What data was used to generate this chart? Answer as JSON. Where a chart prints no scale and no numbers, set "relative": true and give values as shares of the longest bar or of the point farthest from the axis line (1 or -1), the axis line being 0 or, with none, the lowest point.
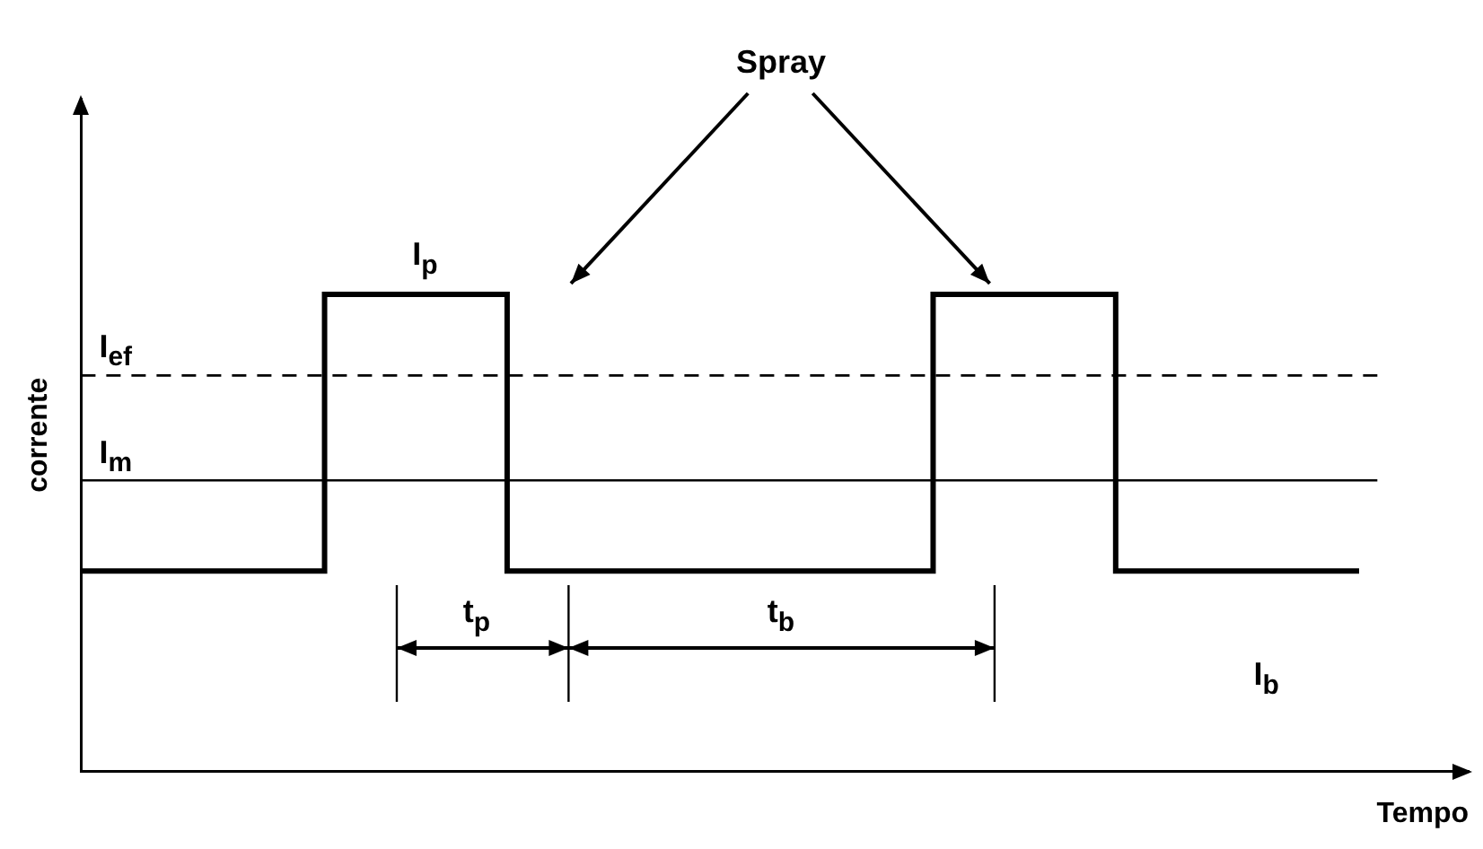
{
  "chart_data": {
    "type": "step",
    "xlabel": "Tempo",
    "ylabel": "corrente",
    "categories": [
      null,
      null,
      null,
      null,
      null,
      null,
      null,
      null,
      null,
      null,
      null,
      null,
      null,
      null,
      null,
      null,
      null,
      null,
      null,
      null,
      null,
      null
    ],
    "series": [
      {
        "color": "#000000",
        "values": [
          0.42,
          0.42,
          0.42,
          0.42,
          0.42,
          1,
          1,
          1,
          0.42,
          0.42,
          0.42,
          0.42,
          0.42,
          0.42,
          0.42,
          1,
          1,
          1,
          0.42,
          0.42,
          0.42,
          0.42
        ]
      }
    ],
    "relative": true,
    "legend": false,
    "marker": "none",
    "line_style": "solid",
    "ref_lines": [
      {
        "axis": "y",
        "value": 0.83,
        "label": "I$_{ef}$",
        "line_style": "dashed",
        "color": "#000000"
      },
      {
        "axis": "y",
        "value": 0.61,
        "label": "I$_{m}$",
        "line_style": "solid",
        "color": "#000000"
      }
    ],
    "annotations": [
      "Spray",
      "I$_{p}$",
      "t$_{p}$",
      "t$_{b}$",
      "I$_{b}$"
    ]
  }
}
